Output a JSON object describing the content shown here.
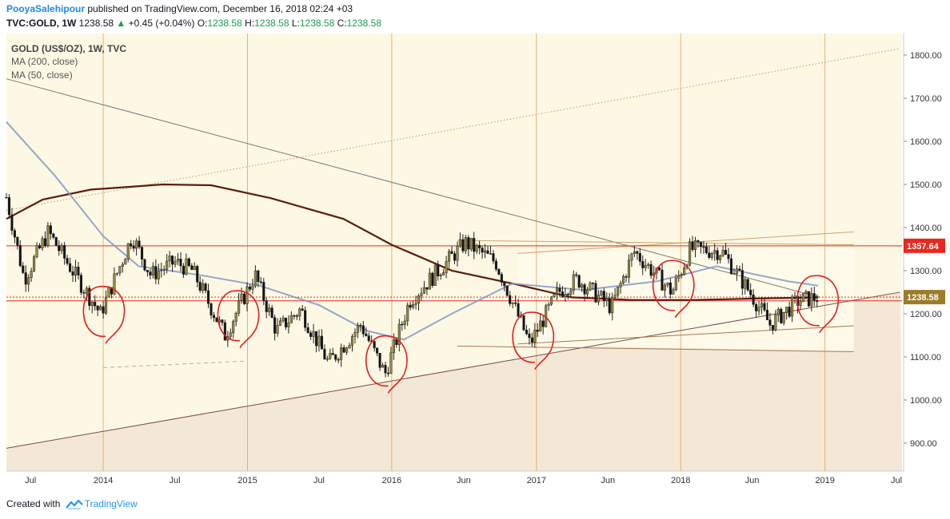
{
  "header": {
    "author": "PooyaSalehipour",
    "published": "published on TradingView.com, December 16, 2018 02:24 +03",
    "symbol": "TVC:GOLD, 1W",
    "last": "1238.58",
    "arrow": "▲",
    "change": "+0.45 (+0.04%)",
    "o_label": "O:",
    "o_value": "1238.58",
    "h_label": "H:",
    "h_value": "1238.58",
    "l_label": "L:",
    "l_value": "1238.58",
    "c_label": "C:",
    "c_value": "1238.58"
  },
  "legend": {
    "instrument": "GOLD (US$/OZ), 1W, TVC",
    "ma200": "MA (200, close)",
    "ma50": "MA (50, close)"
  },
  "footer": {
    "created_with": "Created with",
    "brand": "TradingView"
  },
  "colors": {
    "up": "#998a40",
    "down": "#131313",
    "ma200": "#5d1c0d",
    "ma50": "#8298c4",
    "resistance": "#e8281e",
    "circle": "#e02020",
    "background": "#fdf8e4"
  },
  "chart_data": {
    "type": "candlestick",
    "interval": "1W",
    "y_ticks": [
      900,
      1000,
      1100,
      1200,
      1300,
      1400,
      1500,
      1600,
      1700,
      1800
    ],
    "y_tick_labels": [
      "900.00",
      "1000.00",
      "1100.00",
      "1200.00",
      "1300.00",
      "1400.00",
      "1500.00",
      "1600.00",
      "1700.00",
      "1800.00"
    ],
    "ylim": [
      835,
      1850
    ],
    "x_ticks": [
      {
        "date": "2013-07-01",
        "label": "Jul"
      },
      {
        "date": "2014-01-01",
        "label": "2014"
      },
      {
        "date": "2014-07-01",
        "label": "Jul"
      },
      {
        "date": "2015-01-01",
        "label": "2015"
      },
      {
        "date": "2015-07-01",
        "label": "Jul"
      },
      {
        "date": "2016-01-01",
        "label": "2016"
      },
      {
        "date": "2016-07-01",
        "label": "Jun"
      },
      {
        "date": "2017-01-01",
        "label": "2017"
      },
      {
        "date": "2017-07-01",
        "label": "Jun"
      },
      {
        "date": "2018-01-01",
        "label": "2018"
      },
      {
        "date": "2018-07-01",
        "label": "Jun"
      },
      {
        "date": "2019-01-01",
        "label": "2019"
      },
      {
        "date": "2019-07-01",
        "label": "Jul"
      }
    ],
    "xlim": [
      "2013-05-01",
      "2019-07-15"
    ],
    "price_labels": [
      {
        "value": 1357.64,
        "label": "1357.64",
        "color": "#e8281e"
      },
      {
        "value": 1238.58,
        "label": "1238.58",
        "color": "#9c7b2a"
      }
    ],
    "horizontal_lines": [
      1357.64,
      1238.58,
      1230
    ],
    "weekly_close_path": [
      [
        "2013-05-01",
        1470
      ],
      [
        "2013-06-15",
        1280
      ],
      [
        "2013-08-15",
        1390
      ],
      [
        "2013-10-01",
        1320
      ],
      [
        "2013-12-25",
        1200
      ],
      [
        "2014-03-15",
        1380
      ],
      [
        "2014-05-01",
        1290
      ],
      [
        "2014-07-01",
        1320
      ],
      [
        "2014-08-15",
        1300
      ],
      [
        "2014-11-05",
        1150
      ],
      [
        "2015-01-20",
        1290
      ],
      [
        "2015-03-15",
        1160
      ],
      [
        "2015-05-15",
        1210
      ],
      [
        "2015-07-25",
        1085
      ],
      [
        "2015-10-15",
        1175
      ],
      [
        "2015-12-15",
        1060
      ],
      [
        "2016-02-15",
        1230
      ],
      [
        "2016-07-05",
        1365
      ],
      [
        "2016-09-20",
        1320
      ],
      [
        "2016-12-15",
        1130
      ],
      [
        "2017-02-25",
        1250
      ],
      [
        "2017-04-15",
        1280
      ],
      [
        "2017-07-10",
        1215
      ],
      [
        "2017-09-05",
        1345
      ],
      [
        "2017-12-10",
        1250
      ],
      [
        "2018-01-25",
        1350
      ],
      [
        "2018-04-15",
        1345
      ],
      [
        "2018-06-25",
        1250
      ],
      [
        "2018-08-15",
        1175
      ],
      [
        "2018-10-25",
        1230
      ],
      [
        "2018-12-15",
        1238.58
      ]
    ],
    "series": [
      {
        "name": "MA (200, close)",
        "points": [
          [
            "2013-05-01",
            1420
          ],
          [
            "2013-08-01",
            1465
          ],
          [
            "2013-12-01",
            1488
          ],
          [
            "2014-06-01",
            1500
          ],
          [
            "2014-10-01",
            1498
          ],
          [
            "2015-03-01",
            1468
          ],
          [
            "2015-09-01",
            1420
          ],
          [
            "2016-01-01",
            1360
          ],
          [
            "2016-06-01",
            1300
          ],
          [
            "2016-11-01",
            1270
          ],
          [
            "2017-04-01",
            1238
          ],
          [
            "2017-09-01",
            1232
          ],
          [
            "2018-02-01",
            1232
          ],
          [
            "2018-07-01",
            1235
          ],
          [
            "2018-12-15",
            1238
          ]
        ]
      },
      {
        "name": "MA (50, close)",
        "points": [
          [
            "2013-05-01",
            1645
          ],
          [
            "2013-09-01",
            1520
          ],
          [
            "2014-01-01",
            1380
          ],
          [
            "2014-04-01",
            1310
          ],
          [
            "2014-09-01",
            1290
          ],
          [
            "2015-02-01",
            1265
          ],
          [
            "2015-07-01",
            1220
          ],
          [
            "2015-11-01",
            1160
          ],
          [
            "2016-02-01",
            1140
          ],
          [
            "2016-06-01",
            1200
          ],
          [
            "2016-11-01",
            1270
          ],
          [
            "2017-05-01",
            1255
          ],
          [
            "2017-11-01",
            1275
          ],
          [
            "2018-04-01",
            1310
          ],
          [
            "2018-10-01",
            1275
          ],
          [
            "2018-12-15",
            1265
          ]
        ]
      }
    ],
    "trendlines": [
      {
        "from": [
          "2013-05-01",
          1745
        ],
        "to": [
          "2018-12-20",
          1238
        ],
        "style": "solid",
        "color": "#777777"
      },
      {
        "from": [
          "2013-05-01",
          888
        ],
        "to": [
          "2019-07-10",
          1250
        ],
        "style": "solid",
        "color": "#7a4b4b"
      },
      {
        "from": [
          "2013-05-01",
          1440
        ],
        "to": [
          "2019-07-10",
          1815
        ],
        "style": "dotted",
        "color": "#b5a055"
      },
      {
        "from": [
          "2016-06-15",
          1370
        ],
        "to": [
          "2019-03-15",
          1360
        ],
        "style": "solid",
        "color": "#c8a66e"
      },
      {
        "from": [
          "2016-11-15",
          1340
        ],
        "to": [
          "2019-03-15",
          1390
        ],
        "style": "solid",
        "color": "#c8a66e"
      },
      {
        "from": [
          "2016-06-15",
          1125
        ],
        "to": [
          "2019-03-15",
          1112
        ],
        "style": "solid",
        "color": "#a57a50"
      },
      {
        "from": [
          "2016-11-15",
          1130
        ],
        "to": [
          "2019-03-15",
          1172
        ],
        "style": "solid",
        "color": "#a57a50"
      },
      {
        "from": [
          "2014-01-01",
          1075
        ],
        "to": [
          "2014-12-25",
          1090
        ],
        "style": "dashed",
        "color": "#b0b0a0"
      }
    ],
    "circles": [
      {
        "center": [
          "2013-12-30",
          1205
        ]
      },
      {
        "center": [
          "2014-12-05",
          1195
        ]
      },
      {
        "center": [
          "2015-12-15",
          1090
        ]
      },
      {
        "center": [
          "2016-12-20",
          1145
        ]
      },
      {
        "center": [
          "2017-12-10",
          1265
        ]
      },
      {
        "center": [
          "2018-12-10",
          1230
        ]
      }
    ]
  }
}
